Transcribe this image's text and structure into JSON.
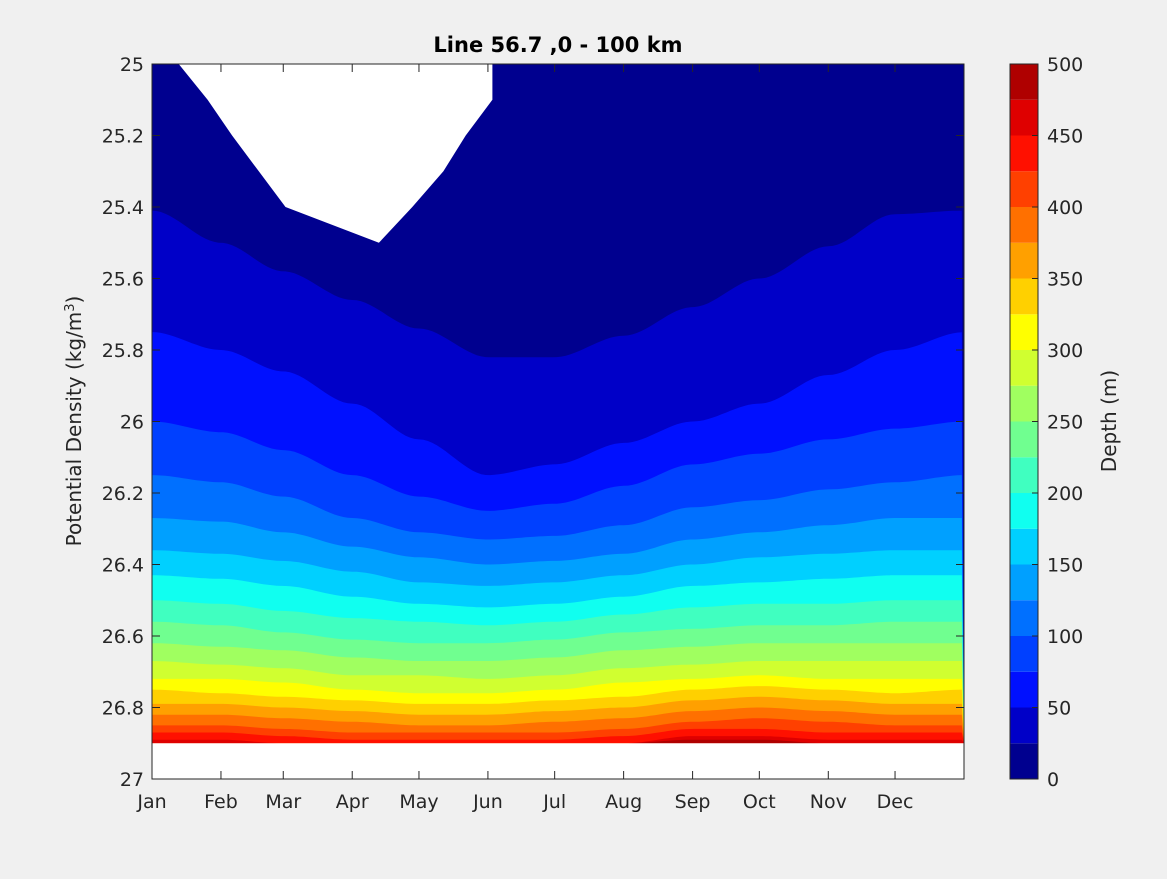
{
  "chart_data": {
    "type": "contourf",
    "title": "Line 56.7 ,0 - 100 km",
    "xlabel": "",
    "ylabel_text": "Potential Density (kg/m",
    "ylabel_sup": "3",
    "ylabel_close": ")",
    "ylim": [
      25,
      27
    ],
    "y_reversed": true,
    "yticks": [
      25,
      25.2,
      25.4,
      25.6,
      25.8,
      26,
      26.2,
      26.4,
      26.6,
      26.8,
      27
    ],
    "ytick_labels": [
      "25",
      "25.2",
      "25.4",
      "25.6",
      "25.8",
      "26",
      "26.2",
      "26.4",
      "26.6",
      "26.8",
      "27"
    ],
    "xlim": [
      0,
      365
    ],
    "xticks": [
      0,
      31,
      59,
      90,
      120,
      151,
      181,
      212,
      243,
      273,
      304,
      334
    ],
    "xtick_labels": [
      "Jan",
      "Feb",
      "Mar",
      "Apr",
      "May",
      "Jun",
      "Jul",
      "Aug",
      "Sep",
      "Oct",
      "Nov",
      "Dec"
    ],
    "colorbar": {
      "label": "Depth (m)",
      "min": 0,
      "max": 500,
      "step": 25,
      "ticks": [
        0,
        50,
        100,
        150,
        200,
        250,
        300,
        350,
        400,
        450,
        500
      ],
      "tick_labels": [
        "0",
        "50",
        "100",
        "150",
        "200",
        "250",
        "300",
        "350",
        "400",
        "450",
        "500"
      ],
      "colors": [
        "#00008f",
        "#0000c8",
        "#0010ff",
        "#0040ff",
        "#0070ff",
        "#00a0ff",
        "#00d0ff",
        "#10fff0",
        "#40ffc0",
        "#70ff90",
        "#a0ff60",
        "#d0ff30",
        "#ffff00",
        "#ffd000",
        "#ffa000",
        "#ff7000",
        "#ff4000",
        "#ff1000",
        "#df0000",
        "#af0000"
      ]
    },
    "contour_levels": [
      25,
      50,
      75,
      100,
      125,
      150,
      175,
      200,
      225,
      250,
      275,
      300,
      325,
      350,
      375,
      400,
      425,
      450,
      475
    ],
    "contour_month_days": [
      0,
      31,
      59,
      90,
      120,
      151,
      181,
      212,
      243,
      273,
      304,
      334,
      365
    ],
    "contour_density": [
      [
        25.41,
        25.5,
        25.58,
        25.66,
        25.74,
        25.82,
        25.82,
        25.76,
        25.68,
        25.6,
        25.51,
        25.42,
        25.41
      ],
      [
        25.75,
        25.8,
        25.86,
        25.95,
        26.05,
        26.15,
        26.12,
        26.06,
        26.0,
        25.95,
        25.87,
        25.8,
        25.75
      ],
      [
        26.0,
        26.03,
        26.08,
        26.15,
        26.21,
        26.25,
        26.23,
        26.18,
        26.12,
        26.09,
        26.05,
        26.02,
        26.0
      ],
      [
        26.15,
        26.17,
        26.21,
        26.27,
        26.31,
        26.33,
        26.32,
        26.29,
        26.24,
        26.22,
        26.19,
        26.17,
        26.15
      ],
      [
        26.27,
        26.28,
        26.31,
        26.35,
        26.38,
        26.4,
        26.39,
        26.37,
        26.33,
        26.31,
        26.29,
        26.27,
        26.27
      ],
      [
        26.36,
        26.37,
        26.39,
        26.42,
        26.45,
        26.46,
        26.45,
        26.43,
        26.4,
        26.38,
        26.37,
        26.36,
        26.36
      ],
      [
        26.43,
        26.44,
        26.46,
        26.49,
        26.51,
        26.52,
        26.51,
        26.49,
        26.46,
        26.45,
        26.44,
        26.43,
        26.43
      ],
      [
        26.5,
        26.51,
        26.53,
        26.55,
        26.56,
        26.57,
        26.56,
        26.54,
        26.52,
        26.51,
        26.51,
        26.5,
        26.5
      ],
      [
        26.56,
        26.57,
        26.59,
        26.61,
        26.62,
        26.62,
        26.61,
        26.59,
        26.58,
        26.57,
        26.57,
        26.56,
        26.56
      ],
      [
        26.62,
        26.63,
        26.64,
        26.66,
        26.67,
        26.67,
        26.66,
        26.64,
        26.63,
        26.62,
        26.62,
        26.62,
        26.62
      ],
      [
        26.67,
        26.68,
        26.69,
        26.71,
        26.71,
        26.72,
        26.71,
        26.69,
        26.68,
        26.67,
        26.67,
        26.67,
        26.67
      ],
      [
        26.72,
        26.72,
        26.73,
        26.75,
        26.76,
        26.76,
        26.75,
        26.73,
        26.72,
        26.71,
        26.72,
        26.72,
        26.72
      ],
      [
        26.75,
        26.76,
        26.77,
        26.78,
        26.79,
        26.79,
        26.78,
        26.77,
        26.75,
        26.74,
        26.75,
        26.76,
        26.75
      ],
      [
        26.79,
        26.79,
        26.8,
        26.81,
        26.82,
        26.82,
        26.81,
        26.8,
        26.78,
        26.77,
        26.78,
        26.79,
        26.79
      ],
      [
        26.82,
        26.82,
        26.83,
        26.84,
        26.85,
        26.85,
        26.84,
        26.83,
        26.81,
        26.8,
        26.81,
        26.82,
        26.82
      ],
      [
        26.85,
        26.85,
        26.86,
        26.87,
        26.87,
        26.87,
        26.87,
        26.86,
        26.84,
        26.83,
        26.84,
        26.85,
        26.85
      ],
      [
        26.87,
        26.87,
        26.88,
        26.89,
        26.89,
        26.89,
        26.89,
        26.88,
        26.86,
        26.86,
        26.87,
        26.87,
        26.87
      ],
      [
        26.89,
        26.89,
        26.9,
        26.9,
        26.9,
        26.9,
        26.9,
        26.9,
        26.88,
        26.88,
        26.89,
        26.89,
        26.89
      ],
      [
        26.9,
        26.9,
        26.9,
        26.9,
        26.9,
        26.9,
        26.9,
        26.9,
        26.89,
        26.89,
        26.9,
        26.9,
        26.9
      ]
    ],
    "nodata_top_days": [
      12,
      25,
      36,
      48,
      60,
      102,
      117,
      131,
      141,
      153,
      153
    ],
    "nodata_top_density": [
      25.0,
      25.1,
      25.2,
      25.3,
      25.4,
      25.5,
      25.4,
      25.3,
      25.2,
      25.1,
      25.0
    ],
    "nodata_bottom_density": 26.9,
    "grid": false,
    "legend": "none"
  }
}
